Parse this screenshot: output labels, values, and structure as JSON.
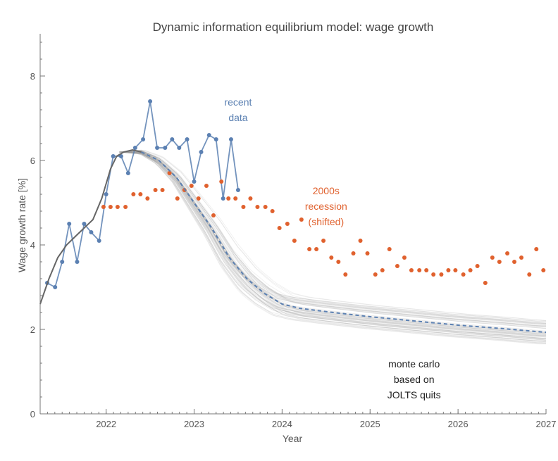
{
  "chart_data": {
    "type": "line",
    "title": "Dynamic information equilibrium model: wage growth",
    "xlabel": "Year",
    "ylabel": "Wage growth rate [%]",
    "xlim": [
      2021.25,
      2027.0
    ],
    "ylim": [
      0,
      9
    ],
    "grid": false,
    "x_ticks": [
      {
        "value": 2022,
        "label": "2022"
      },
      {
        "value": 2023,
        "label": "2023"
      },
      {
        "value": 2024,
        "label": "2024"
      },
      {
        "value": 2025,
        "label": "2025"
      },
      {
        "value": 2026,
        "label": "2026"
      },
      {
        "value": 2027,
        "label": "2027"
      }
    ],
    "y_ticks": [
      {
        "value": 0,
        "label": "0"
      },
      {
        "value": 2,
        "label": "2"
      },
      {
        "value": 4,
        "label": "4"
      },
      {
        "value": 6,
        "label": "6"
      },
      {
        "value": 8,
        "label": "8"
      }
    ],
    "colors": {
      "recent": "#5b80b2",
      "recession": "#e0612e",
      "model": "#666666",
      "montecarlo": "#999999",
      "mean": "#5b80b2"
    },
    "annotations": [
      {
        "id": "recent",
        "lines": [
          "recent",
          "data"
        ],
        "color": "#5b80b2",
        "x": 2023.5,
        "y": 7.3
      },
      {
        "id": "recession",
        "lines": [
          "2000s",
          "recession",
          "(shifted)"
        ],
        "color": "#e0612e",
        "x": 2024.5,
        "y": 5.2
      },
      {
        "id": "montecarlo",
        "lines": [
          "monte carlo",
          "based on",
          "JOLTS quits"
        ],
        "color": "#222222",
        "x": 2025.5,
        "y": 1.1
      }
    ],
    "series": [
      {
        "name": "recent data",
        "style": "line+points",
        "x": [
          2021.33,
          2021.42,
          2021.5,
          2021.58,
          2021.67,
          2021.75,
          2021.83,
          2021.92,
          2022.0,
          2022.08,
          2022.17,
          2022.25,
          2022.33,
          2022.42,
          2022.5,
          2022.58,
          2022.67,
          2022.75,
          2022.83,
          2022.92,
          2023.0,
          2023.08,
          2023.17,
          2023.25,
          2023.33,
          2023.42,
          2023.5
        ],
        "y": [
          3.1,
          3.0,
          3.6,
          4.5,
          3.6,
          4.5,
          4.3,
          4.1,
          5.2,
          6.1,
          6.1,
          5.7,
          6.3,
          6.5,
          7.4,
          6.3,
          6.3,
          6.5,
          6.3,
          6.5,
          5.5,
          6.2,
          6.6,
          6.5,
          5.1,
          6.5,
          5.3
        ]
      },
      {
        "name": "2000s recession (shifted)",
        "style": "points",
        "x": [
          2021.97,
          2022.05,
          2022.13,
          2022.22,
          2022.31,
          2022.39,
          2022.47,
          2022.56,
          2022.64,
          2022.72,
          2022.81,
          2022.89,
          2022.97,
          2023.05,
          2023.14,
          2023.22,
          2023.31,
          2023.39,
          2023.47,
          2023.56,
          2023.64,
          2023.72,
          2023.81,
          2023.89,
          2023.97,
          2024.06,
          2024.14,
          2024.22,
          2024.31,
          2024.39,
          2024.47,
          2024.56,
          2024.64,
          2024.72,
          2024.81,
          2024.89,
          2024.97,
          2025.06,
          2025.14,
          2025.22,
          2025.31,
          2025.39,
          2025.47,
          2025.56,
          2025.64,
          2025.72,
          2025.81,
          2025.89,
          2025.97,
          2026.06,
          2026.14,
          2026.22,
          2026.31,
          2026.39,
          2026.47,
          2026.56,
          2026.64,
          2026.72,
          2026.81,
          2026.89,
          2026.97
        ],
        "y": [
          4.9,
          4.9,
          4.9,
          4.9,
          5.2,
          5.2,
          5.1,
          5.3,
          5.3,
          5.7,
          5.1,
          5.3,
          5.4,
          5.1,
          5.4,
          4.7,
          5.5,
          5.1,
          5.1,
          4.9,
          5.1,
          4.9,
          4.9,
          4.8,
          4.4,
          4.5,
          4.1,
          4.6,
          3.9,
          3.9,
          4.1,
          3.7,
          3.6,
          3.3,
          3.8,
          4.1,
          3.8,
          3.3,
          3.4,
          3.9,
          3.5,
          3.7,
          3.4,
          3.4,
          3.4,
          3.3,
          3.3,
          3.4,
          3.4,
          3.3,
          3.4,
          3.5,
          3.1,
          3.7,
          3.6,
          3.8,
          3.6,
          3.7,
          3.3,
          3.9,
          3.4
        ]
      },
      {
        "name": "model",
        "style": "line",
        "x": [
          2021.25,
          2021.35,
          2021.45,
          2021.55,
          2021.65,
          2021.75,
          2021.85,
          2021.95,
          2022.05,
          2022.12,
          2022.2,
          2022.3,
          2022.4
        ],
        "y": [
          2.6,
          3.2,
          3.7,
          4.0,
          4.2,
          4.4,
          4.6,
          5.1,
          5.8,
          6.1,
          6.2,
          6.25,
          6.2
        ]
      },
      {
        "name": "monte carlo mean",
        "style": "dashed",
        "x": [
          2022.4,
          2022.6,
          2022.8,
          2023.0,
          2023.2,
          2023.4,
          2023.6,
          2023.8,
          2024.0,
          2024.2,
          2024.5,
          2025.0,
          2025.5,
          2026.0,
          2026.5,
          2027.0
        ],
        "y": [
          6.2,
          6.0,
          5.6,
          5.0,
          4.4,
          3.7,
          3.2,
          2.85,
          2.6,
          2.5,
          2.42,
          2.3,
          2.2,
          2.1,
          2.02,
          1.93
        ]
      }
    ]
  }
}
